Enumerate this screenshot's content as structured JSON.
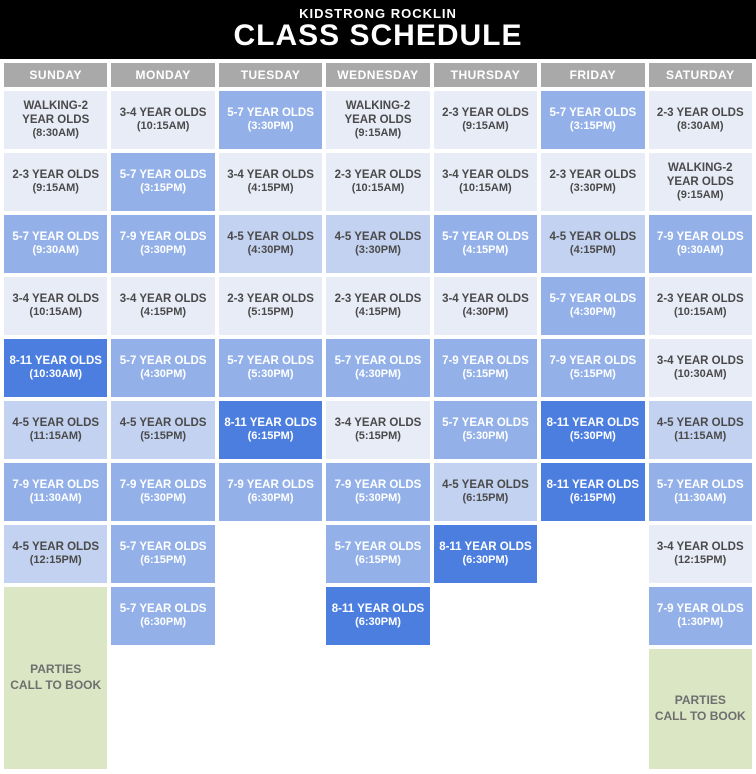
{
  "header": {
    "subtitle": "KIDSTRONG ROCKLIN",
    "title": "CLASS SCHEDULE"
  },
  "colors": {
    "walking2": {
      "bg": "#e8ecf7",
      "fg": "#4a4a4a"
    },
    "2-3": {
      "bg": "#e8ecf7",
      "fg": "#4a4a4a"
    },
    "3-4": {
      "bg": "#e8ecf7",
      "fg": "#4a4a4a"
    },
    "4-5": {
      "bg": "#c3d2f0",
      "fg": "#4a4a4a"
    },
    "5-7": {
      "bg": "#93b1e8",
      "fg": "#ffffff"
    },
    "7-9": {
      "bg": "#93b1e8",
      "fg": "#ffffff"
    },
    "8-11": {
      "bg": "#4c7ee0",
      "fg": "#ffffff"
    },
    "parties": {
      "bg": "#dbe6c4",
      "fg": "#6f6f6f"
    }
  },
  "days": [
    {
      "name": "SUNDAY",
      "classes": [
        {
          "label": "WALKING-2 YEAR OLDS",
          "time": "(8:30AM)",
          "c": "walking2"
        },
        {
          "label": "2-3 YEAR OLDS",
          "time": "(9:15AM)",
          "c": "2-3"
        },
        {
          "label": "5-7 YEAR OLDS",
          "time": "(9:30AM)",
          "c": "5-7"
        },
        {
          "label": "3-4 YEAR OLDS",
          "time": "(10:15AM)",
          "c": "3-4"
        },
        {
          "label": "8-11 YEAR OLDS",
          "time": "(10:30AM)",
          "c": "8-11"
        },
        {
          "label": "4-5 YEAR OLDS",
          "time": "(11:15AM)",
          "c": "4-5"
        },
        {
          "label": "7-9 YEAR OLDS",
          "time": "(11:30AM)",
          "c": "7-9"
        },
        {
          "label": "4-5 YEAR OLDS",
          "time": "(12:15PM)",
          "c": "4-5"
        }
      ],
      "parties": {
        "line1": "PARTIES",
        "line2": "CALL TO BOOK"
      }
    },
    {
      "name": "MONDAY",
      "classes": [
        {
          "label": "3-4 YEAR OLDS",
          "time": "(10:15AM)",
          "c": "3-4"
        },
        {
          "label": "5-7 YEAR OLDS",
          "time": "(3:15PM)",
          "c": "5-7"
        },
        {
          "label": "7-9 YEAR OLDS",
          "time": "(3:30PM)",
          "c": "7-9"
        },
        {
          "label": "3-4 YEAR OLDS",
          "time": "(4:15PM)",
          "c": "3-4"
        },
        {
          "label": "5-7 YEAR OLDS",
          "time": "(4:30PM)",
          "c": "5-7"
        },
        {
          "label": "4-5 YEAR OLDS",
          "time": "(5:15PM)",
          "c": "4-5"
        },
        {
          "label": "7-9 YEAR OLDS",
          "time": "(5:30PM)",
          "c": "7-9"
        },
        {
          "label": "5-7 YEAR OLDS",
          "time": "(6:15PM)",
          "c": "5-7"
        },
        {
          "label": "5-7 YEAR OLDS",
          "time": "(6:30PM)",
          "c": "5-7"
        }
      ]
    },
    {
      "name": "TUESDAY",
      "classes": [
        {
          "label": "5-7 YEAR OLDS",
          "time": "(3:30PM)",
          "c": "5-7"
        },
        {
          "label": "3-4 YEAR OLDS",
          "time": "(4:15PM)",
          "c": "3-4"
        },
        {
          "label": "4-5 YEAR OLDS",
          "time": "(4:30PM)",
          "c": "4-5"
        },
        {
          "label": "2-3 YEAR OLDS",
          "time": "(5:15PM)",
          "c": "2-3"
        },
        {
          "label": "5-7 YEAR OLDS",
          "time": "(5:30PM)",
          "c": "5-7"
        },
        {
          "label": "8-11 YEAR OLDS",
          "time": "(6:15PM)",
          "c": "8-11"
        },
        {
          "label": "7-9 YEAR OLDS",
          "time": "(6:30PM)",
          "c": "7-9"
        }
      ]
    },
    {
      "name": "WEDNESDAY",
      "classes": [
        {
          "label": "WALKING-2 YEAR OLDS",
          "time": "(9:15AM)",
          "c": "walking2"
        },
        {
          "label": "2-3 YEAR OLDS",
          "time": "(10:15AM)",
          "c": "2-3"
        },
        {
          "label": "4-5 YEAR OLDS",
          "time": "(3:30PM)",
          "c": "4-5"
        },
        {
          "label": "2-3 YEAR OLDS",
          "time": "(4:15PM)",
          "c": "2-3"
        },
        {
          "label": "5-7 YEAR OLDS",
          "time": "(4:30PM)",
          "c": "5-7"
        },
        {
          "label": "3-4 YEAR OLDS",
          "time": "(5:15PM)",
          "c": "3-4"
        },
        {
          "label": "7-9 YEAR OLDS",
          "time": "(5:30PM)",
          "c": "7-9"
        },
        {
          "label": "5-7 YEAR OLDS",
          "time": "(6:15PM)",
          "c": "5-7"
        },
        {
          "label": "8-11 YEAR OLDS",
          "time": "(6:30PM)",
          "c": "8-11"
        }
      ]
    },
    {
      "name": "THURSDAY",
      "classes": [
        {
          "label": "2-3 YEAR OLDS",
          "time": "(9:15AM)",
          "c": "2-3"
        },
        {
          "label": "3-4 YEAR OLDS",
          "time": "(10:15AM)",
          "c": "3-4"
        },
        {
          "label": "5-7 YEAR OLDS",
          "time": "(4:15PM)",
          "c": "5-7"
        },
        {
          "label": "3-4 YEAR OLDS",
          "time": "(4:30PM)",
          "c": "3-4"
        },
        {
          "label": "7-9 YEAR OLDS",
          "time": "(5:15PM)",
          "c": "7-9"
        },
        {
          "label": "5-7 YEAR OLDS",
          "time": "(5:30PM)",
          "c": "5-7"
        },
        {
          "label": "4-5 YEAR OLDS",
          "time": "(6:15PM)",
          "c": "4-5"
        },
        {
          "label": "8-11 YEAR OLDS",
          "time": "(6:30PM)",
          "c": "8-11"
        }
      ]
    },
    {
      "name": "FRIDAY",
      "classes": [
        {
          "label": "5-7 YEAR OLDS",
          "time": "(3:15PM)",
          "c": "5-7"
        },
        {
          "label": "2-3 YEAR OLDS",
          "time": "(3:30PM)",
          "c": "2-3"
        },
        {
          "label": "4-5 YEAR OLDS",
          "time": "(4:15PM)",
          "c": "4-5"
        },
        {
          "label": "5-7 YEAR OLDS",
          "time": "(4:30PM)",
          "c": "5-7"
        },
        {
          "label": "7-9 YEAR OLDS",
          "time": "(5:15PM)",
          "c": "7-9"
        },
        {
          "label": "8-11 YEAR OLDS",
          "time": "(5:30PM)",
          "c": "8-11"
        },
        {
          "label": "8-11 YEAR OLDS",
          "time": "(6:15PM)",
          "c": "8-11"
        }
      ]
    },
    {
      "name": "SATURDAY",
      "classes": [
        {
          "label": "2-3 YEAR OLDS",
          "time": "(8:30AM)",
          "c": "2-3"
        },
        {
          "label": "WALKING-2 YEAR OLDS",
          "time": "(9:15AM)",
          "c": "walking2"
        },
        {
          "label": "7-9 YEAR OLDS",
          "time": "(9:30AM)",
          "c": "7-9"
        },
        {
          "label": "2-3 YEAR OLDS",
          "time": "(10:15AM)",
          "c": "2-3"
        },
        {
          "label": "3-4 YEAR OLDS",
          "time": "(10:30AM)",
          "c": "3-4"
        },
        {
          "label": "4-5 YEAR OLDS",
          "time": "(11:15AM)",
          "c": "4-5"
        },
        {
          "label": "5-7 YEAR OLDS",
          "time": "(11:30AM)",
          "c": "5-7"
        },
        {
          "label": "3-4 YEAR OLDS",
          "time": "(12:15PM)",
          "c": "3-4"
        },
        {
          "label": "7-9 YEAR OLDS",
          "time": "(1:30PM)",
          "c": "7-9"
        }
      ],
      "parties": {
        "line1": "PARTIES",
        "line2": "CALL TO BOOK"
      }
    }
  ]
}
